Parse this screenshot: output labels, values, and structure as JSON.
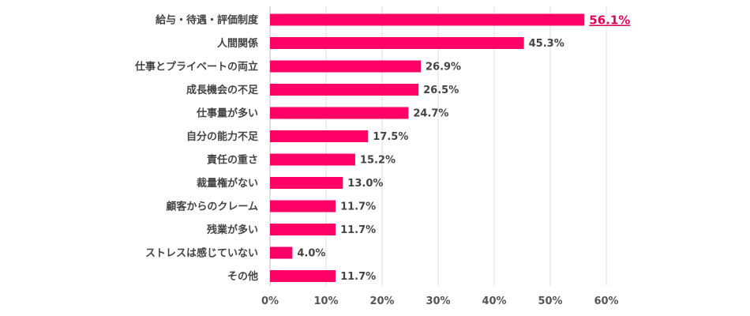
{
  "chart_data": {
    "type": "bar",
    "orientation": "horizontal",
    "title": "",
    "xlabel": "",
    "ylabel": "",
    "xlim": [
      0,
      60
    ],
    "grid": true,
    "bar_color": "#ff0066",
    "highlight_color": "#e6005c",
    "ticks": [
      "0%",
      "10%",
      "20%",
      "30%",
      "40%",
      "50%",
      "60%"
    ],
    "tick_values": [
      0,
      10,
      20,
      30,
      40,
      50,
      60
    ],
    "categories": [
      "給与・待遇・評価制度",
      "人間関係",
      "仕事とプライベートの両立",
      "成長機会の不足",
      "仕事量が多い",
      "自分の能力不足",
      "責任の重さ",
      "裁量権がない",
      "顧客からのクレーム",
      "残業が多い",
      "ストレスは感じていない",
      "その他"
    ],
    "values": [
      56.1,
      45.3,
      26.9,
      26.5,
      24.7,
      17.5,
      15.2,
      13.0,
      11.7,
      11.7,
      4.0,
      11.7
    ],
    "value_labels": [
      "56.1%",
      "45.3%",
      "26.9%",
      "26.5%",
      "24.7%",
      "17.5%",
      "15.2%",
      "13.0%",
      "11.7%",
      "11.7%",
      "4.0%",
      "11.7%"
    ],
    "highlight_index": 0
  }
}
